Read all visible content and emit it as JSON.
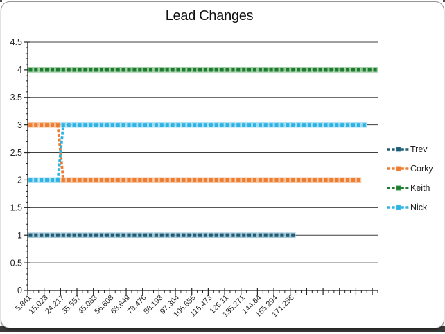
{
  "chart_data": {
    "type": "line",
    "title": "Lead Changes",
    "xlabel": "",
    "ylabel": "",
    "ylim": [
      0,
      4.5
    ],
    "y_tick_step": 0.5,
    "y_tick_labels": [
      "0",
      "0.5",
      "1",
      "1.5",
      "2",
      "2.5",
      "3",
      "3.5",
      "4",
      "4.5"
    ],
    "x_tick_labels": [
      "5.841",
      "15.023",
      "24.217",
      "35.557",
      "45.083",
      "56.608",
      "68.649",
      "78.476",
      "88.193",
      "97.304",
      "106.655",
      "116.473",
      "126.11",
      "135.271",
      "144.64",
      "155.294",
      "171.256"
    ],
    "x_label_interval": 3,
    "categories_count": 64,
    "grid": true,
    "legend_position": "right",
    "line_style": "dashed-with-square-markers",
    "series": [
      {
        "name": "Trev",
        "color": "#1F5C73",
        "marker_outline": "#A6C9D9",
        "segments": [
          {
            "value": 1,
            "count": 49
          }
        ]
      },
      {
        "name": "Corky",
        "color": "#ED7D31",
        "marker_outline": "#F6C49E",
        "segments": [
          {
            "value": 3,
            "count": 6
          },
          {
            "value": 2,
            "count": 55
          }
        ]
      },
      {
        "name": "Keith",
        "color": "#1E7B30",
        "marker_outline": "#9ECFA4",
        "segments": [
          {
            "value": 4,
            "count": 64
          }
        ]
      },
      {
        "name": "Nick",
        "color": "#2FB3E3",
        "marker_outline": "#ABE0F5",
        "segments": [
          {
            "value": 2,
            "count": 6
          },
          {
            "value": 3,
            "count": 56
          }
        ]
      }
    ]
  }
}
